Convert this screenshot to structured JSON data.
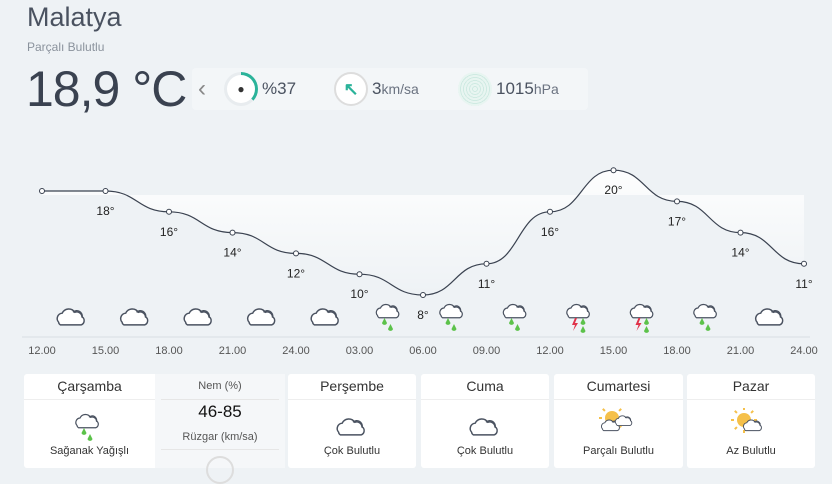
{
  "location": {
    "city": "Malatya",
    "condition": "Parçalı Bulutlu",
    "temperature": "18,9 °C"
  },
  "stats": {
    "humidity": "%37",
    "humidity_percent": 37,
    "wind_value": "3",
    "wind_unit": "km/sa",
    "pressure_value": "1015",
    "pressure_unit": "hPa"
  },
  "hourly": {
    "times": [
      "12.00",
      "15.00",
      "18.00",
      "21.00",
      "24.00",
      "03.00",
      "06.00",
      "09.00",
      "12.00",
      "15.00",
      "18.00",
      "21.00",
      "24.00"
    ],
    "temps": [
      18,
      18,
      16,
      14,
      12,
      10,
      8,
      11,
      16,
      20,
      17,
      14,
      11
    ],
    "labels": [
      "",
      "18°",
      "16°",
      "14°",
      "12°",
      "10°",
      "8°",
      "11°",
      "16°",
      "20°",
      "17°",
      "14°",
      "11°"
    ],
    "icons": [
      "cloud-icon",
      "cloud-icon",
      "cloud-icon",
      "cloud-icon",
      "cloud-icon",
      "rain-cloud-icon",
      "rain-cloud-icon",
      "rain-cloud-icon",
      "thunderstorm-icon",
      "thunderstorm-icon",
      "rain-cloud-icon",
      "cloud-icon"
    ]
  },
  "days": [
    {
      "name": "Çarşamba",
      "condition": "Sağanak Yağışlı",
      "icon": "rain-cloud-icon"
    },
    {
      "name": "Perşembe",
      "condition": "Çok Bulutlu",
      "icon": "cloud-icon"
    },
    {
      "name": "Cuma",
      "condition": "Çok Bulutlu",
      "icon": "cloud-icon"
    },
    {
      "name": "Cumartesi",
      "condition": "Parçalı Bulutlu",
      "icon": "partly-cloudy-icon"
    },
    {
      "name": "Pazar",
      "condition": "Az Bulutlu",
      "icon": "sun-cloud-icon"
    }
  ],
  "today_detail": {
    "humidity_label": "Nem (%)",
    "humidity_value": "46-85",
    "wind_label": "Rüzgar (km/sa)"
  },
  "colors": {
    "accent": "#2bb39a",
    "rain": "#5cc24a",
    "lightning": "#e0334a",
    "sun": "#f5c04a"
  }
}
